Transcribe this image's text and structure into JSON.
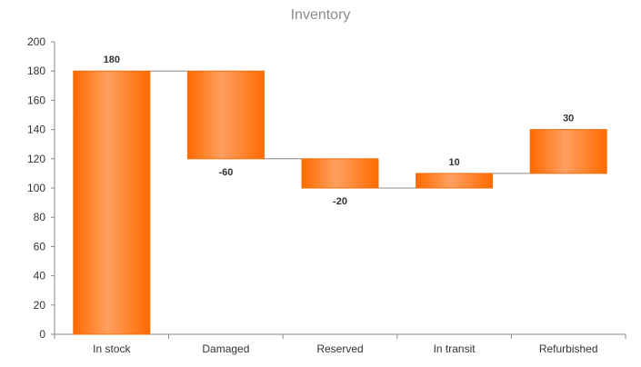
{
  "chart_data": {
    "type": "bar",
    "subtype": "waterfall",
    "title": "Inventory",
    "categories": [
      "In stock",
      "Damaged",
      "Reserved",
      "In transit",
      "Refurbished"
    ],
    "values": [
      180,
      -60,
      -20,
      10,
      30
    ],
    "data_labels": [
      "180",
      "-60",
      "-20",
      "10",
      "30"
    ],
    "ylim": [
      0,
      200
    ],
    "yticks": [
      0,
      20,
      40,
      60,
      80,
      100,
      120,
      140,
      160,
      180,
      200
    ],
    "xlabel": "",
    "ylabel": "",
    "grid": false,
    "legend": "none",
    "colors": {
      "bar_edge": "#f07010",
      "bar_center": "#ffa060",
      "bar_side": "#ff6a00",
      "connector": "#888888",
      "axis": "#888888"
    }
  }
}
